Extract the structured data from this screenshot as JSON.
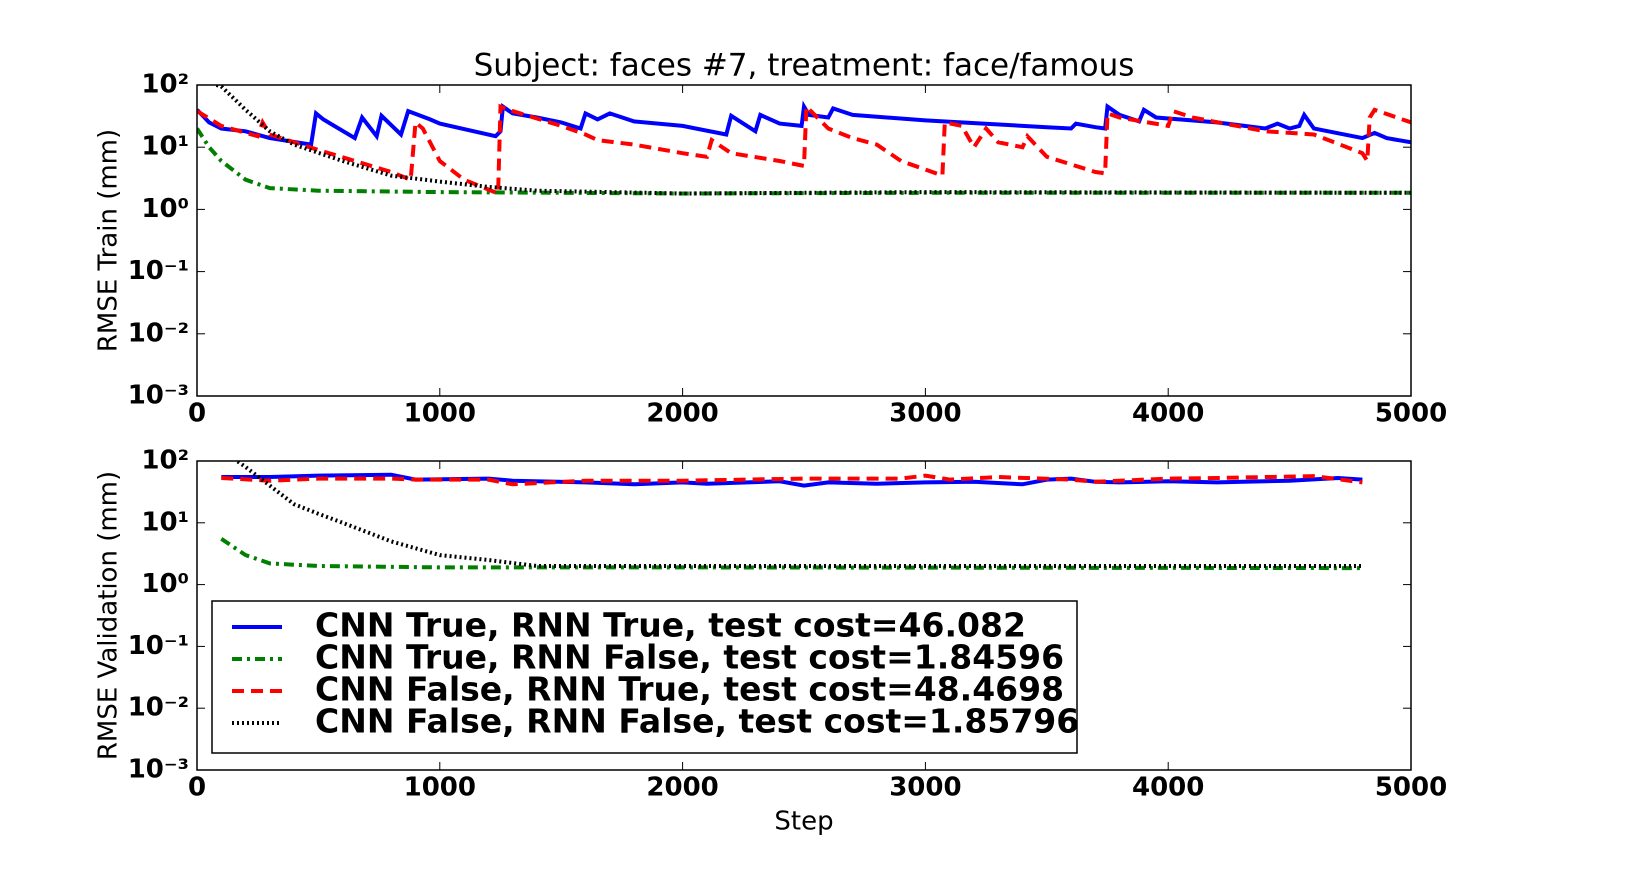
{
  "chart_data": [
    {
      "type": "line",
      "title": "Subject: faces #7, treatment: face/famous",
      "ylabel": "RMSE Train (mm)",
      "yscale": "log",
      "xlim": [
        0,
        5000
      ],
      "ylim": [
        0.001,
        100
      ],
      "xticks": [
        0,
        1000,
        2000,
        3000,
        4000,
        5000
      ],
      "yticks": [
        {
          "value": 0.001,
          "label": "10⁻³"
        },
        {
          "value": 0.01,
          "label": "10⁻²"
        },
        {
          "value": 0.1,
          "label": "10⁻¹"
        },
        {
          "value": 1,
          "label": "10⁰"
        },
        {
          "value": 10,
          "label": "10¹"
        },
        {
          "value": 100,
          "label": "10²"
        }
      ],
      "series": [
        {
          "color": "#0000ff",
          "linestyle": "solid",
          "x": [
            0,
            50,
            100,
            200,
            300,
            470,
            490,
            520,
            650,
            680,
            740,
            760,
            840,
            870,
            960,
            1000,
            1230,
            1250,
            1260,
            1300,
            1400,
            1500,
            1580,
            1600,
            1650,
            1700,
            1800,
            2000,
            2180,
            2200,
            2300,
            2320,
            2400,
            2490,
            2500,
            2520,
            2600,
            2620,
            2700,
            3000,
            3500,
            3600,
            3620,
            3700,
            3740,
            3750,
            3800,
            3880,
            3900,
            3950,
            4200,
            4400,
            4450,
            4500,
            4540,
            4560,
            4600,
            4800,
            4850,
            4900,
            5000
          ],
          "values": [
            40,
            25,
            20,
            18,
            14,
            11,
            35,
            28,
            14,
            30,
            15,
            32,
            16,
            38,
            28,
            24,
            15,
            18,
            45,
            35,
            30,
            25,
            20,
            35,
            28,
            35,
            26,
            22,
            16,
            32,
            18,
            33,
            24,
            22,
            45,
            33,
            30,
            42,
            33,
            27,
            21,
            20,
            24,
            21,
            20,
            45,
            33,
            26,
            40,
            30,
            25,
            20,
            24,
            20,
            22,
            33,
            20,
            14,
            17,
            14,
            12
          ]
        },
        {
          "color": "#007f00",
          "linestyle": "dashdot",
          "x": [
            0,
            50,
            100,
            200,
            300,
            500,
            1000,
            2000,
            3000,
            4000,
            5000
          ],
          "values": [
            20,
            10,
            6,
            3,
            2.2,
            2,
            1.9,
            1.8,
            1.85,
            1.85,
            1.85
          ]
        },
        {
          "color": "#ff0000",
          "linestyle": "dashed",
          "x": [
            0,
            100,
            250,
            270,
            300,
            500,
            800,
            880,
            900,
            930,
            1000,
            1100,
            1240,
            1250,
            1300,
            1500,
            1600,
            1650,
            1800,
            2000,
            2100,
            2120,
            2200,
            2400,
            2500,
            2510,
            2600,
            2700,
            2800,
            2900,
            3070,
            3080,
            3150,
            3200,
            3250,
            3300,
            3400,
            3420,
            3500,
            3700,
            3740,
            3750,
            3800,
            4000,
            4020,
            4100,
            4400,
            4600,
            4800,
            4820,
            4830,
            4850,
            5000
          ],
          "values": [
            38,
            22,
            15,
            25,
            16,
            9,
            4,
            3,
            25,
            20,
            6,
            3,
            1.8,
            45,
            38,
            22,
            16,
            13,
            11,
            8,
            7,
            13,
            8,
            6,
            5,
            45,
            20,
            14,
            11,
            6,
            3.5,
            25,
            22,
            10,
            20,
            12,
            10,
            15,
            7,
            4,
            3.8,
            35,
            30,
            22,
            38,
            30,
            18,
            16,
            8,
            6,
            30,
            40,
            25
          ]
        },
        {
          "color": "#000000",
          "linestyle": "dotted",
          "x": [
            80,
            100,
            200,
            300,
            400,
            600,
            800,
            1000,
            1200,
            1400,
            2000,
            3000,
            5000
          ],
          "values": [
            100,
            95,
            40,
            18,
            11,
            6,
            3.5,
            2.8,
            2.3,
            2,
            1.8,
            1.9,
            1.85
          ]
        }
      ]
    },
    {
      "type": "line",
      "ylabel": "RMSE Validation (mm)",
      "xlabel": "Step",
      "yscale": "log",
      "xlim": [
        0,
        5000
      ],
      "ylim": [
        0.001,
        100
      ],
      "xticks": [
        0,
        1000,
        2000,
        3000,
        4000,
        5000
      ],
      "yticks": [
        {
          "value": 0.001,
          "label": "10⁻³"
        },
        {
          "value": 0.01,
          "label": "10⁻²"
        },
        {
          "value": 0.1,
          "label": "10⁻¹"
        },
        {
          "value": 1,
          "label": "10⁰"
        },
        {
          "value": 10,
          "label": "10¹"
        },
        {
          "value": 100,
          "label": "10²"
        }
      ],
      "legend": "lower left",
      "series": [
        {
          "name": "CNN True, RNN True, test cost=46.082",
          "color": "#0000ff",
          "linestyle": "solid",
          "x": [
            100,
            300,
            500,
            800,
            900,
            1200,
            1300,
            1600,
            1800,
            2000,
            2100,
            2400,
            2500,
            2600,
            2800,
            3000,
            3200,
            3400,
            3500,
            3600,
            3700,
            3800,
            4000,
            4200,
            4500,
            4700,
            4800
          ],
          "values": [
            55,
            55,
            58,
            60,
            50,
            52,
            48,
            45,
            42,
            45,
            43,
            47,
            40,
            45,
            43,
            45,
            46,
            42,
            50,
            52,
            46,
            45,
            47,
            45,
            48,
            53,
            50
          ]
        },
        {
          "name": "CNN True, RNN False, test cost=1.84596",
          "color": "#007f00",
          "linestyle": "dashdot",
          "x": [
            100,
            200,
            300,
            500,
            1000,
            2000,
            4800
          ],
          "values": [
            5.5,
            3,
            2.2,
            2,
            1.9,
            1.9,
            1.85
          ]
        },
        {
          "name": "CNN False, RNN True, test cost=48.4698",
          "color": "#ff0000",
          "linestyle": "dashed",
          "x": [
            100,
            300,
            500,
            800,
            900,
            1200,
            1300,
            1600,
            2000,
            2500,
            2900,
            3000,
            3100,
            3300,
            3600,
            3700,
            4000,
            4200,
            4600,
            4800
          ],
          "values": [
            53,
            48,
            52,
            52,
            50,
            50,
            42,
            48,
            48,
            52,
            52,
            58,
            50,
            55,
            50,
            46,
            52,
            53,
            57,
            45
          ]
        },
        {
          "name": "CNN False, RNN False, test cost=1.85796",
          "color": "#000000",
          "linestyle": "dotted",
          "x": [
            100,
            200,
            300,
            400,
            500,
            600,
            800,
            1000,
            1200,
            1400,
            2000,
            4800
          ],
          "values": [
            150,
            80,
            40,
            20,
            14,
            10,
            5,
            3,
            2.5,
            2,
            2,
            2
          ]
        }
      ]
    }
  ]
}
